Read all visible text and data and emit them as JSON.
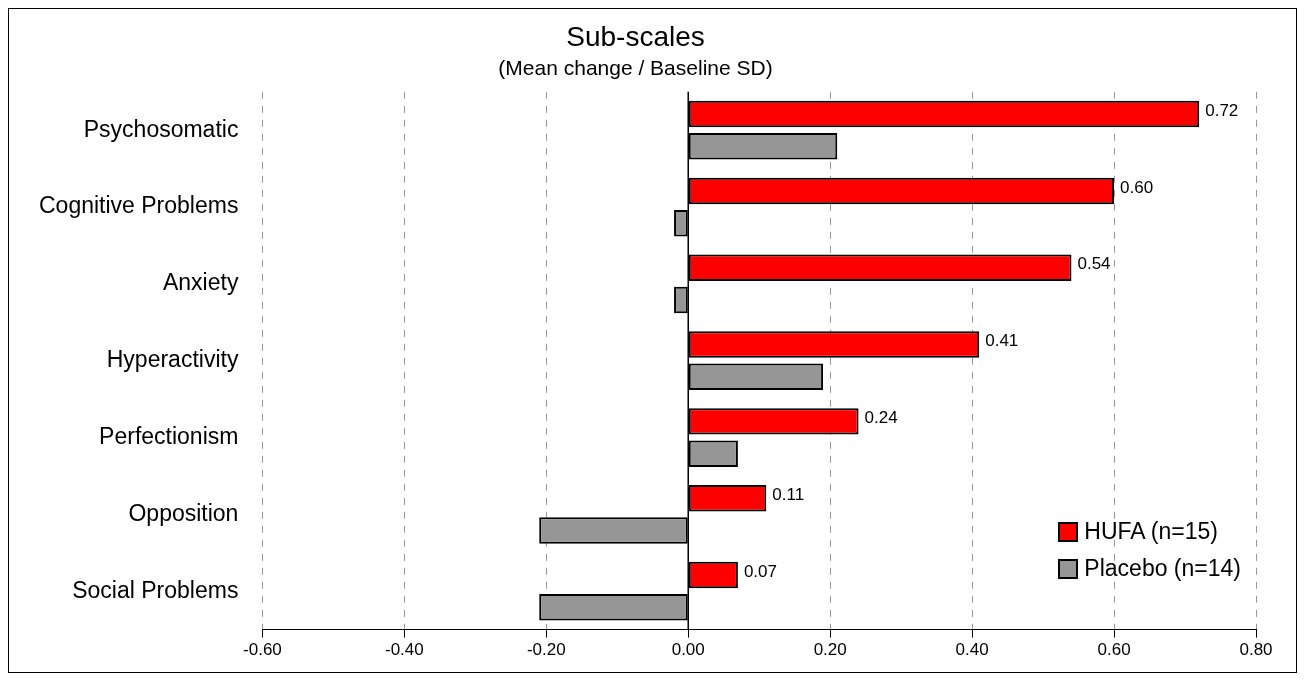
{
  "chart_data": {
    "type": "bar",
    "orientation": "horizontal",
    "title": "Sub-scales",
    "subtitle": "(Mean change / Baseline SD)",
    "categories": [
      "Psychosomatic",
      "Cognitive Problems",
      "Anxiety",
      "Hyperactivity",
      "Perfectionism",
      "Opposition",
      "Social Problems"
    ],
    "series": [
      {
        "name": "HUFA (n=15)",
        "color": "#ff0000",
        "values": [
          0.72,
          0.6,
          0.54,
          0.41,
          0.24,
          0.11,
          0.07
        ],
        "value_labels": [
          "0.72",
          "0.60",
          "0.54",
          "0.41",
          "0.24",
          "0.11",
          "0.07"
        ]
      },
      {
        "name": "Placebo (n=14)",
        "color": "#969696",
        "values": [
          0.21,
          -0.02,
          -0.02,
          0.19,
          0.07,
          -0.21,
          -0.21
        ]
      }
    ],
    "xlim": [
      -0.6,
      0.8
    ],
    "xticks": [
      {
        "value": -0.6,
        "label": "-0.60"
      },
      {
        "value": -0.4,
        "label": "-0.40"
      },
      {
        "value": -0.2,
        "label": "-0.20"
      },
      {
        "value": 0,
        "label": "0.00"
      },
      {
        "value": 0.2,
        "label": "0.20"
      },
      {
        "value": 0.4,
        "label": "0.40"
      },
      {
        "value": 0.6,
        "label": "0.60"
      },
      {
        "value": 0.8,
        "label": "0.80"
      }
    ],
    "grid": "x",
    "legend": "bottom right"
  }
}
